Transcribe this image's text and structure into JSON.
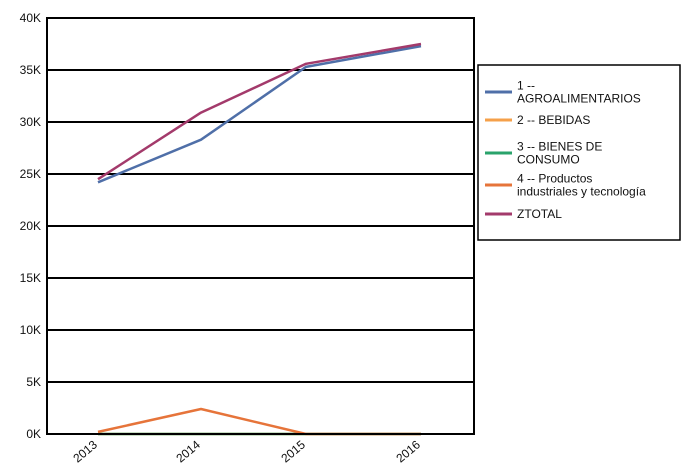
{
  "chart_data": {
    "type": "line",
    "title": "",
    "xlabel": "",
    "ylabel": "",
    "categories": [
      "2013",
      "2014",
      "2015",
      "2016"
    ],
    "ylim": [
      0,
      40000
    ],
    "y_ticks": [
      0,
      5000,
      10000,
      15000,
      20000,
      25000,
      30000,
      35000,
      40000
    ],
    "y_tick_labels": [
      "0K",
      "5K",
      "10K",
      "15K",
      "20K",
      "25K",
      "30K",
      "35K",
      "40K"
    ],
    "grid": "horizontal",
    "legend_position": "right",
    "series": [
      {
        "name": "1 -- AGROALIMENTARIOS",
        "name_lines": [
          "1 --",
          "AGROALIMENTARIOS"
        ],
        "color": "#4f6fa8",
        "values": [
          24200,
          28300,
          35300,
          37300
        ]
      },
      {
        "name": "2 -- BEBIDAS",
        "name_lines": [
          "2 -- BEBIDAS"
        ],
        "color": "#f5a04a",
        "values": [
          0,
          0,
          0,
          0
        ]
      },
      {
        "name": "3 -- BIENES DE CONSUMO",
        "name_lines": [
          "3 -- BIENES DE",
          "CONSUMO"
        ],
        "color": "#2aa36b",
        "values": [
          0,
          0,
          0,
          0
        ]
      },
      {
        "name": "4 -- Productos industriales y tecnología",
        "name_lines": [
          "4 -- Productos",
          "industriales y tecnología"
        ],
        "color": "#e6743a",
        "values": [
          200,
          2400,
          0,
          0
        ]
      },
      {
        "name": "ZTOTAL",
        "name_lines": [
          "ZTOTAL"
        ],
        "color": "#a33a6b",
        "values": [
          24500,
          30900,
          35600,
          37500
        ]
      }
    ]
  }
}
